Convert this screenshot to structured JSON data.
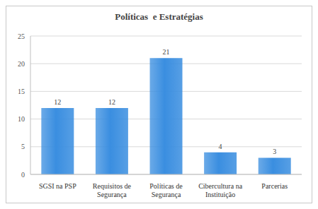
{
  "chart_data": {
    "type": "bar",
    "title": "Políticas  e Estratégias",
    "categories": [
      "SGSI na PSP",
      "Requisitos de Segurança",
      "Políticas de Segurança",
      "Cibercultura na Instituição",
      "Parcerias"
    ],
    "values": [
      12,
      12,
      21,
      4,
      3
    ],
    "color": "#3a8ee0",
    "ylim": [
      0,
      25
    ],
    "yticks": [
      0,
      5,
      10,
      15,
      20,
      25
    ],
    "grid": true,
    "data_labels": true
  }
}
